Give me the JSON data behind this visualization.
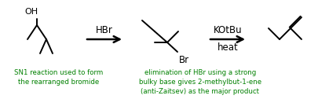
{
  "bg_color": "#ffffff",
  "line_color": "#000000",
  "green_color": "#008000",
  "arrow_label1_top": "HBr",
  "arrow_label2_top": "KOtBu",
  "arrow_label2_bot": "heat",
  "text1": "SN1 reaction used to form\nthe rearranged bromide",
  "text2": "elimination of HBr using a strong\nbulky base gives 2-methylbut-1-ene\n(anti-Zaitsev) as the major product",
  "figsize": [
    4.06,
    1.4
  ],
  "dpi": 100
}
